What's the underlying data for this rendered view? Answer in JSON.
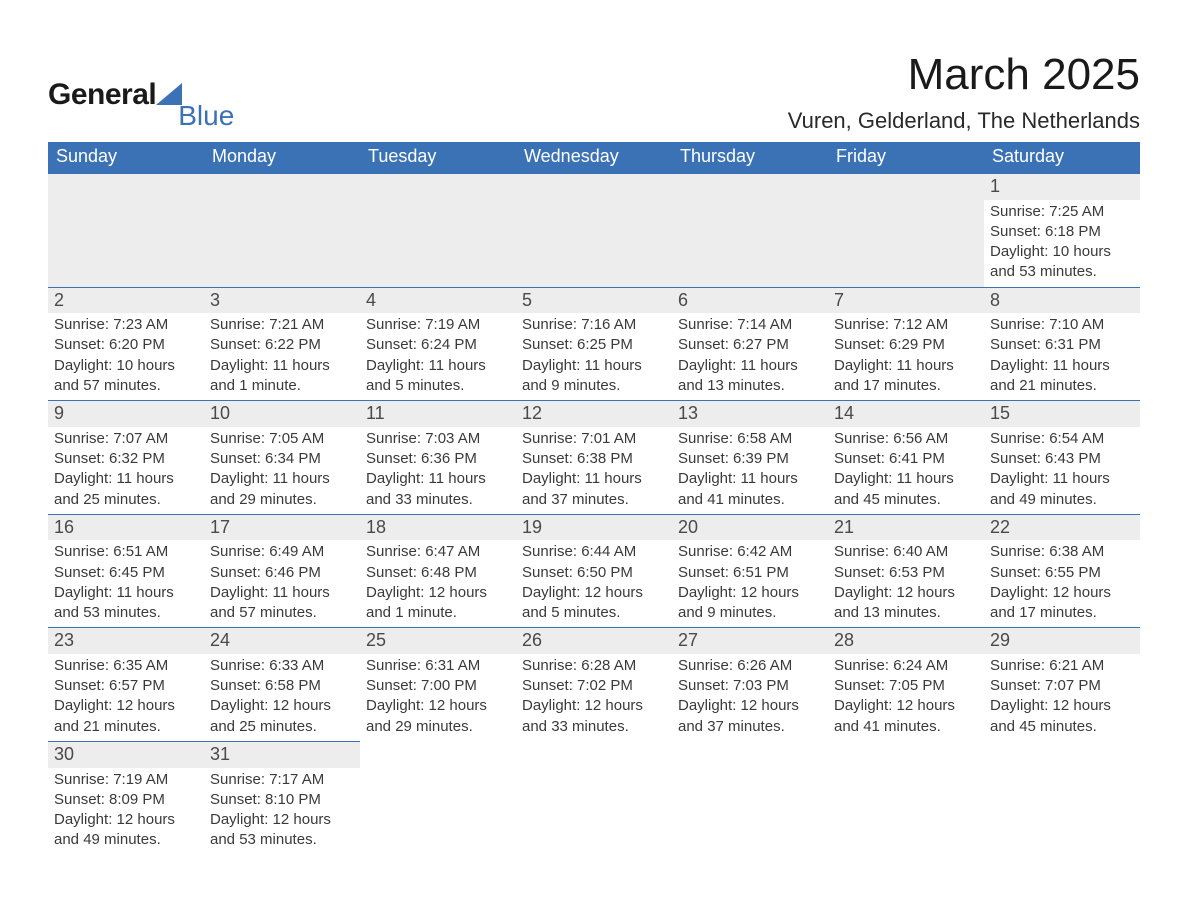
{
  "brand": {
    "word1": "General",
    "word2": "Blue",
    "accent_color": "#3a72b5"
  },
  "header": {
    "title": "March 2025",
    "location": "Vuren, Gelderland, The Netherlands"
  },
  "colors": {
    "header_bg": "#3a72b5",
    "header_text": "#ffffff",
    "daynum_bg": "#ededed",
    "text": "#3a3a3a",
    "row_border": "#3a72b5"
  },
  "weekdays": [
    "Sunday",
    "Monday",
    "Tuesday",
    "Wednesday",
    "Thursday",
    "Friday",
    "Saturday"
  ],
  "first_day_column": 6,
  "days": [
    {
      "n": 1,
      "sunrise": "7:25 AM",
      "sunset": "6:18 PM",
      "daylight": "10 hours and 53 minutes."
    },
    {
      "n": 2,
      "sunrise": "7:23 AM",
      "sunset": "6:20 PM",
      "daylight": "10 hours and 57 minutes."
    },
    {
      "n": 3,
      "sunrise": "7:21 AM",
      "sunset": "6:22 PM",
      "daylight": "11 hours and 1 minute."
    },
    {
      "n": 4,
      "sunrise": "7:19 AM",
      "sunset": "6:24 PM",
      "daylight": "11 hours and 5 minutes."
    },
    {
      "n": 5,
      "sunrise": "7:16 AM",
      "sunset": "6:25 PM",
      "daylight": "11 hours and 9 minutes."
    },
    {
      "n": 6,
      "sunrise": "7:14 AM",
      "sunset": "6:27 PM",
      "daylight": "11 hours and 13 minutes."
    },
    {
      "n": 7,
      "sunrise": "7:12 AM",
      "sunset": "6:29 PM",
      "daylight": "11 hours and 17 minutes."
    },
    {
      "n": 8,
      "sunrise": "7:10 AM",
      "sunset": "6:31 PM",
      "daylight": "11 hours and 21 minutes."
    },
    {
      "n": 9,
      "sunrise": "7:07 AM",
      "sunset": "6:32 PM",
      "daylight": "11 hours and 25 minutes."
    },
    {
      "n": 10,
      "sunrise": "7:05 AM",
      "sunset": "6:34 PM",
      "daylight": "11 hours and 29 minutes."
    },
    {
      "n": 11,
      "sunrise": "7:03 AM",
      "sunset": "6:36 PM",
      "daylight": "11 hours and 33 minutes."
    },
    {
      "n": 12,
      "sunrise": "7:01 AM",
      "sunset": "6:38 PM",
      "daylight": "11 hours and 37 minutes."
    },
    {
      "n": 13,
      "sunrise": "6:58 AM",
      "sunset": "6:39 PM",
      "daylight": "11 hours and 41 minutes."
    },
    {
      "n": 14,
      "sunrise": "6:56 AM",
      "sunset": "6:41 PM",
      "daylight": "11 hours and 45 minutes."
    },
    {
      "n": 15,
      "sunrise": "6:54 AM",
      "sunset": "6:43 PM",
      "daylight": "11 hours and 49 minutes."
    },
    {
      "n": 16,
      "sunrise": "6:51 AM",
      "sunset": "6:45 PM",
      "daylight": "11 hours and 53 minutes."
    },
    {
      "n": 17,
      "sunrise": "6:49 AM",
      "sunset": "6:46 PM",
      "daylight": "11 hours and 57 minutes."
    },
    {
      "n": 18,
      "sunrise": "6:47 AM",
      "sunset": "6:48 PM",
      "daylight": "12 hours and 1 minute."
    },
    {
      "n": 19,
      "sunrise": "6:44 AM",
      "sunset": "6:50 PM",
      "daylight": "12 hours and 5 minutes."
    },
    {
      "n": 20,
      "sunrise": "6:42 AM",
      "sunset": "6:51 PM",
      "daylight": "12 hours and 9 minutes."
    },
    {
      "n": 21,
      "sunrise": "6:40 AM",
      "sunset": "6:53 PM",
      "daylight": "12 hours and 13 minutes."
    },
    {
      "n": 22,
      "sunrise": "6:38 AM",
      "sunset": "6:55 PM",
      "daylight": "12 hours and 17 minutes."
    },
    {
      "n": 23,
      "sunrise": "6:35 AM",
      "sunset": "6:57 PM",
      "daylight": "12 hours and 21 minutes."
    },
    {
      "n": 24,
      "sunrise": "6:33 AM",
      "sunset": "6:58 PM",
      "daylight": "12 hours and 25 minutes."
    },
    {
      "n": 25,
      "sunrise": "6:31 AM",
      "sunset": "7:00 PM",
      "daylight": "12 hours and 29 minutes."
    },
    {
      "n": 26,
      "sunrise": "6:28 AM",
      "sunset": "7:02 PM",
      "daylight": "12 hours and 33 minutes."
    },
    {
      "n": 27,
      "sunrise": "6:26 AM",
      "sunset": "7:03 PM",
      "daylight": "12 hours and 37 minutes."
    },
    {
      "n": 28,
      "sunrise": "6:24 AM",
      "sunset": "7:05 PM",
      "daylight": "12 hours and 41 minutes."
    },
    {
      "n": 29,
      "sunrise": "6:21 AM",
      "sunset": "7:07 PM",
      "daylight": "12 hours and 45 minutes."
    },
    {
      "n": 30,
      "sunrise": "7:19 AM",
      "sunset": "8:09 PM",
      "daylight": "12 hours and 49 minutes."
    },
    {
      "n": 31,
      "sunrise": "7:17 AM",
      "sunset": "8:10 PM",
      "daylight": "12 hours and 53 minutes."
    }
  ],
  "labels": {
    "sunrise": "Sunrise:",
    "sunset": "Sunset:",
    "daylight": "Daylight:"
  }
}
